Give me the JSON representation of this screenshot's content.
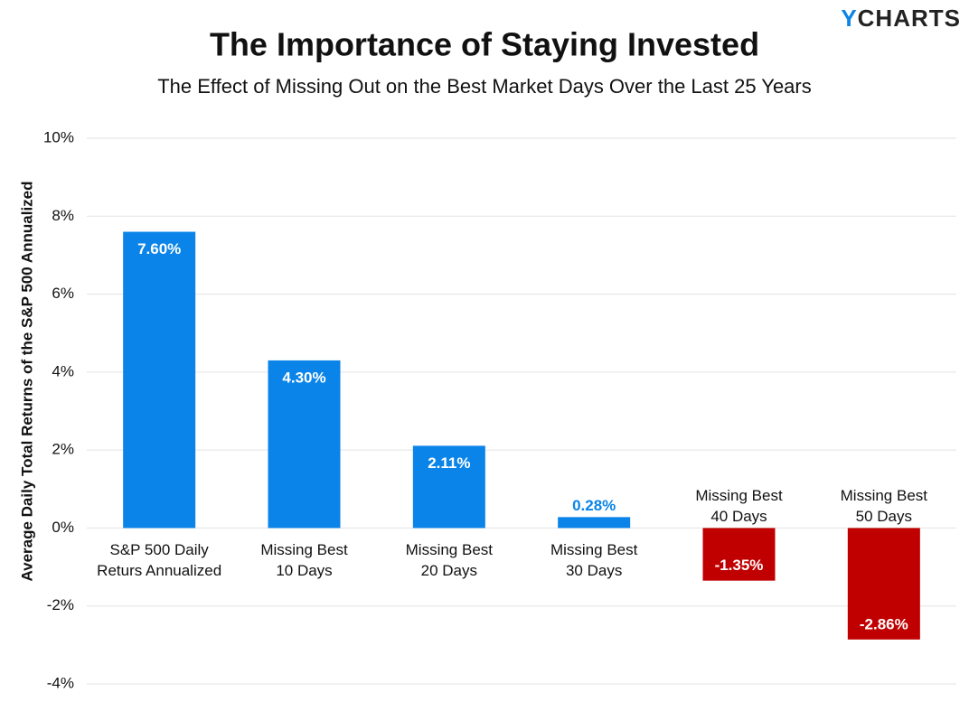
{
  "brand": {
    "mark": "Y",
    "rest": "CHARTS"
  },
  "chart_data": {
    "type": "bar",
    "title": "The Importance of Staying Invested",
    "subtitle": "The Effect of Missing Out on the Best Market Days Over the Last 25 Years",
    "y_label": "Average Daily Total Returns of the S&P 500 Annualized",
    "categories": [
      [
        "S&P 500 Daily",
        "Returs Annualized"
      ],
      [
        "Missing Best",
        "10 Days"
      ],
      [
        "Missing Best",
        "20 Days"
      ],
      [
        "Missing Best",
        "30 Days"
      ],
      [
        "Missing Best",
        "40 Days"
      ],
      [
        "Missing Best",
        "50 Days"
      ]
    ],
    "values": [
      7.6,
      4.3,
      2.11,
      0.28,
      -1.35,
      -2.86
    ],
    "value_labels": [
      "7.60%",
      "4.30%",
      "2.11%",
      "0.28%",
      "-1.35%",
      "-2.86%"
    ],
    "colors": [
      "#0a84e8",
      "#0a84e8",
      "#0a84e8",
      "#0a84e8",
      "#c00000",
      "#c00000"
    ],
    "ylim": [
      -4,
      10
    ],
    "yticks": [
      {
        "value": -4,
        "label": "-4%"
      },
      {
        "value": -2,
        "label": "-2%"
      },
      {
        "value": 0,
        "label": "0%"
      },
      {
        "value": 2,
        "label": "2%"
      },
      {
        "value": 4,
        "label": "4%"
      },
      {
        "value": 6,
        "label": "6%"
      },
      {
        "value": 8,
        "label": "8%"
      },
      {
        "value": 10,
        "label": "10%"
      }
    ],
    "grid": true
  }
}
